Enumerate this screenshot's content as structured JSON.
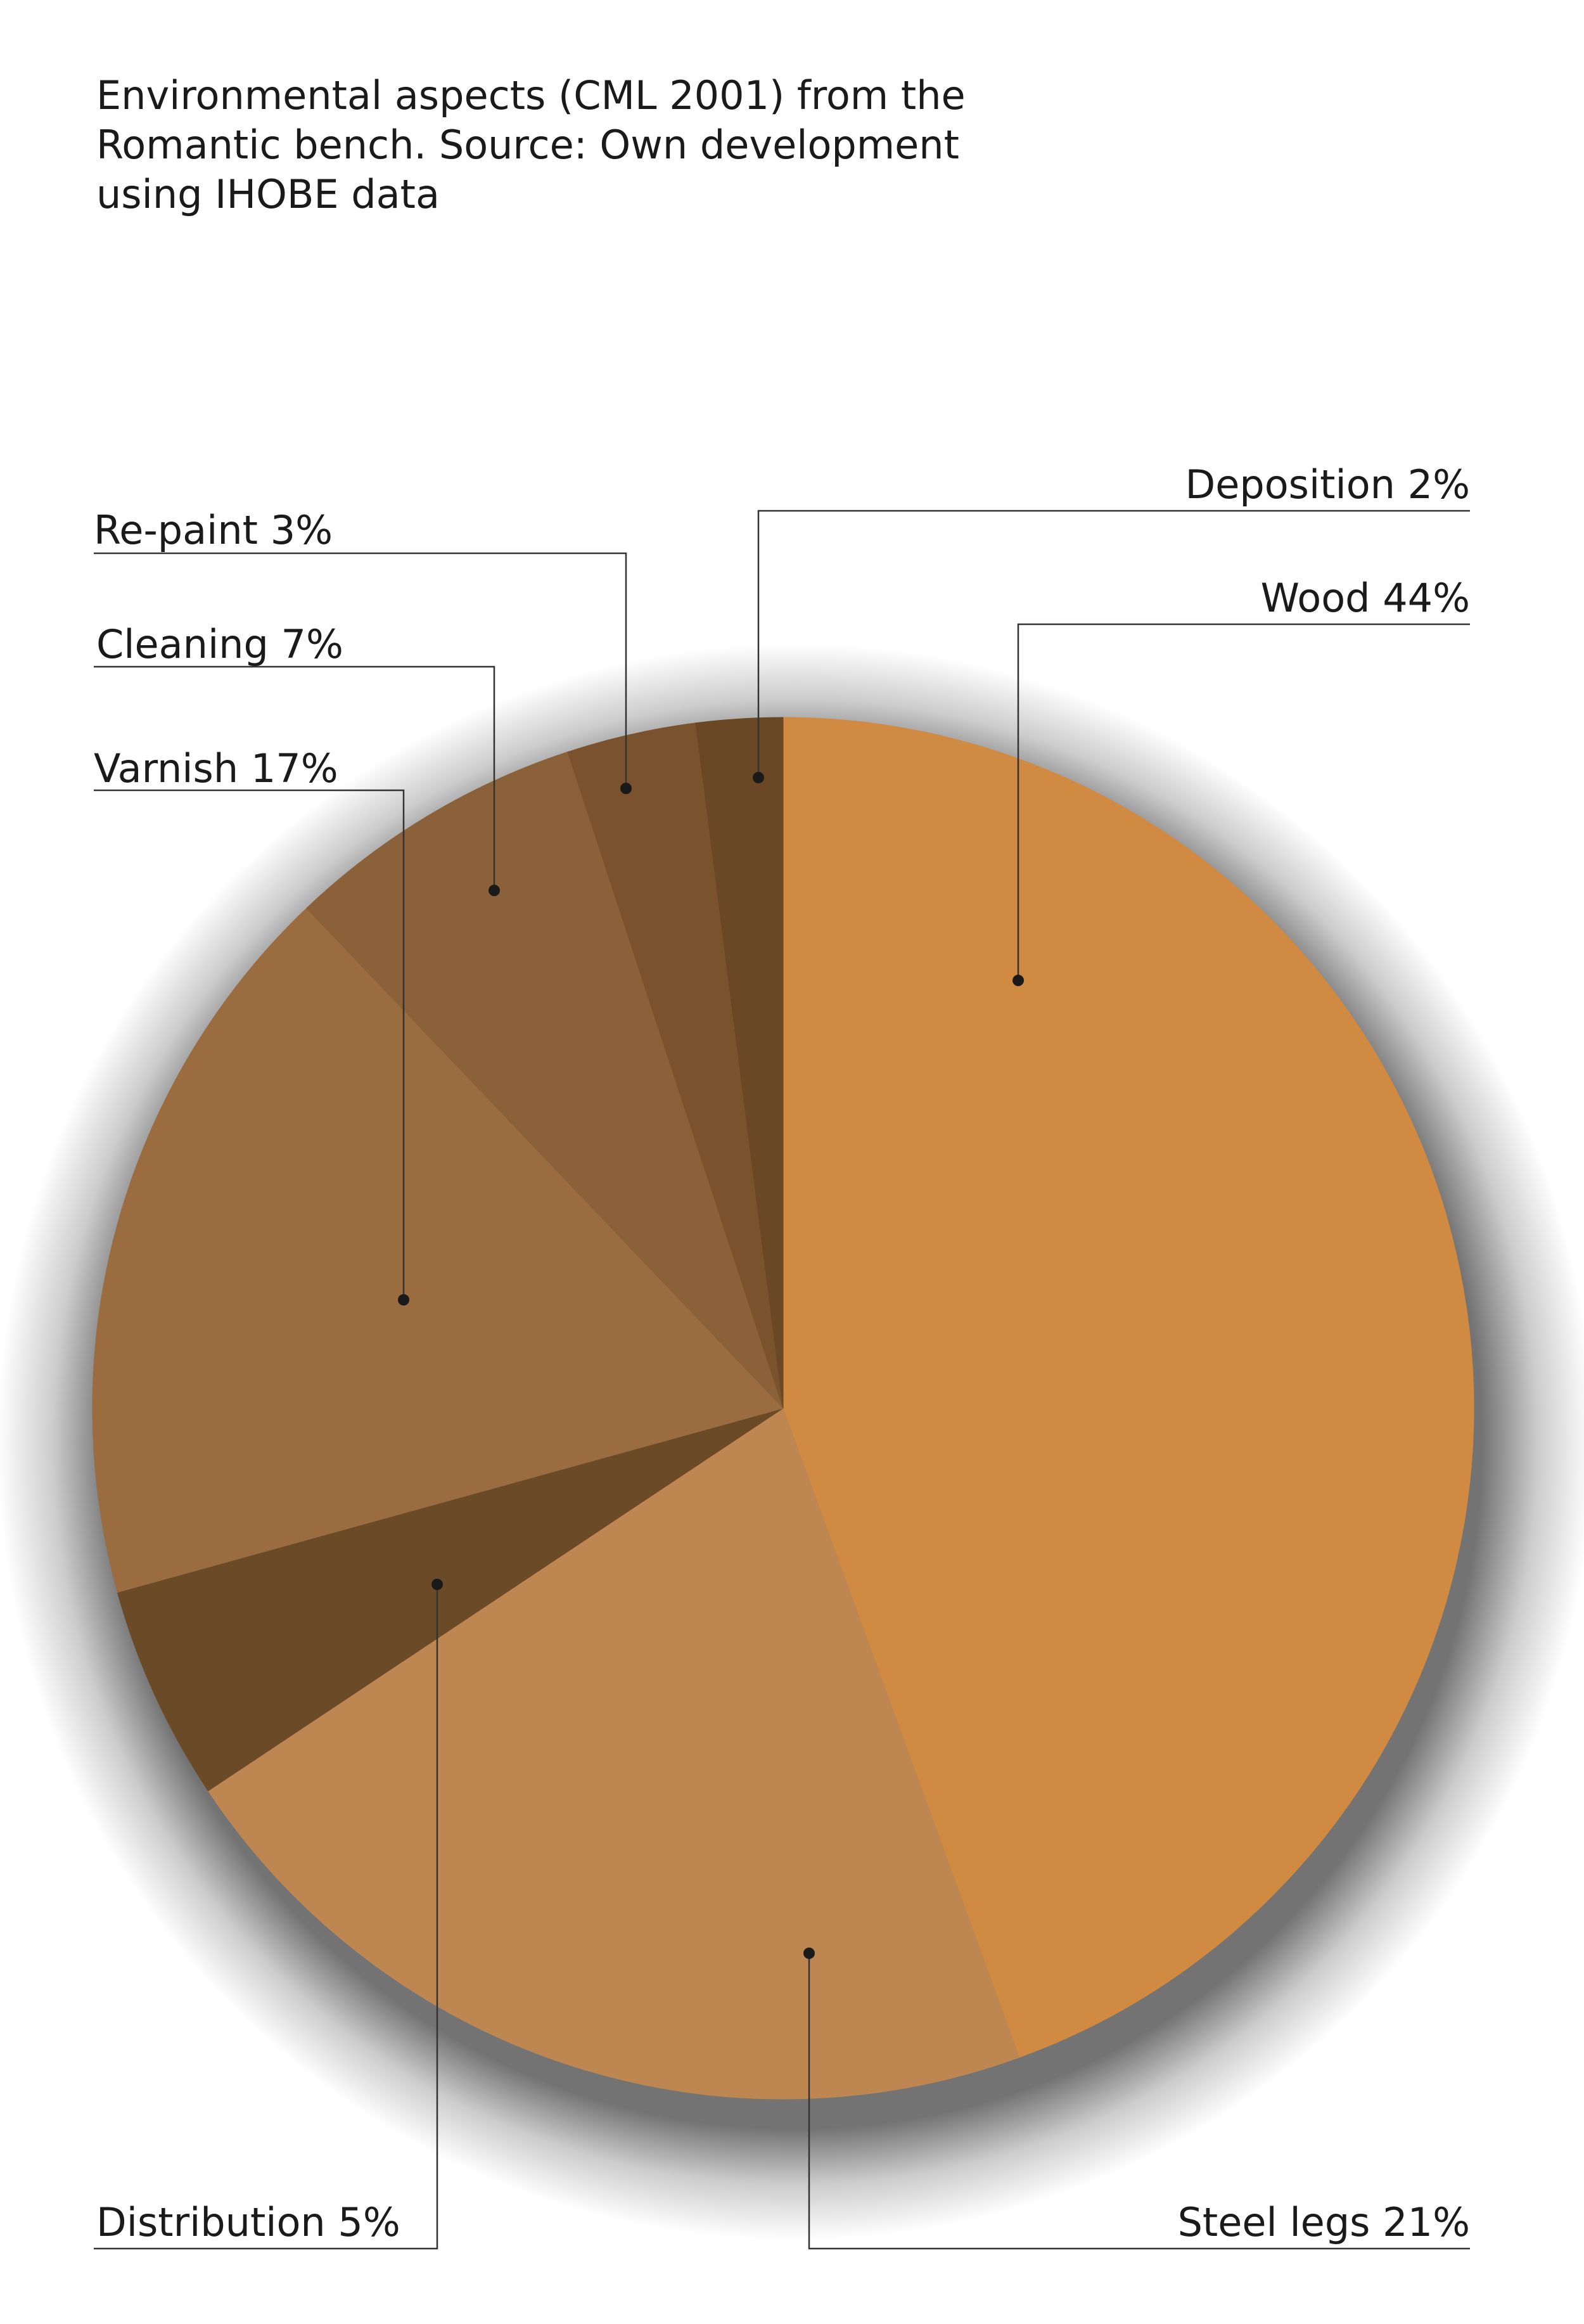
{
  "chart_data": {
    "type": "pie",
    "title_lines": [
      "Environmental aspects (CML 2001) from the",
      "Romantic bench. Source: Own development",
      "using IHOBE data"
    ],
    "slices": [
      {
        "name": "Wood",
        "value": 44,
        "label": "Wood 44%",
        "color": "#D08A42"
      },
      {
        "name": "Steel legs",
        "value": 21,
        "label": "Steel legs 21%",
        "color": "#BE8752"
      },
      {
        "name": "Distribution",
        "value": 5,
        "label": "Distribution 5%",
        "color": "#6B4A28"
      },
      {
        "name": "Varnish",
        "value": 17,
        "label": "Varnish 17%",
        "color": "#9A6C40"
      },
      {
        "name": "Cleaning",
        "value": 7,
        "label": "Cleaning 7%",
        "color": "#8B6139"
      },
      {
        "name": "Re-paint",
        "value": 3,
        "label": "Re-paint 3%",
        "color": "#7A522D"
      },
      {
        "name": "Deposition",
        "value": 2,
        "label": "Deposition 2%",
        "color": "#6A4826"
      }
    ]
  }
}
